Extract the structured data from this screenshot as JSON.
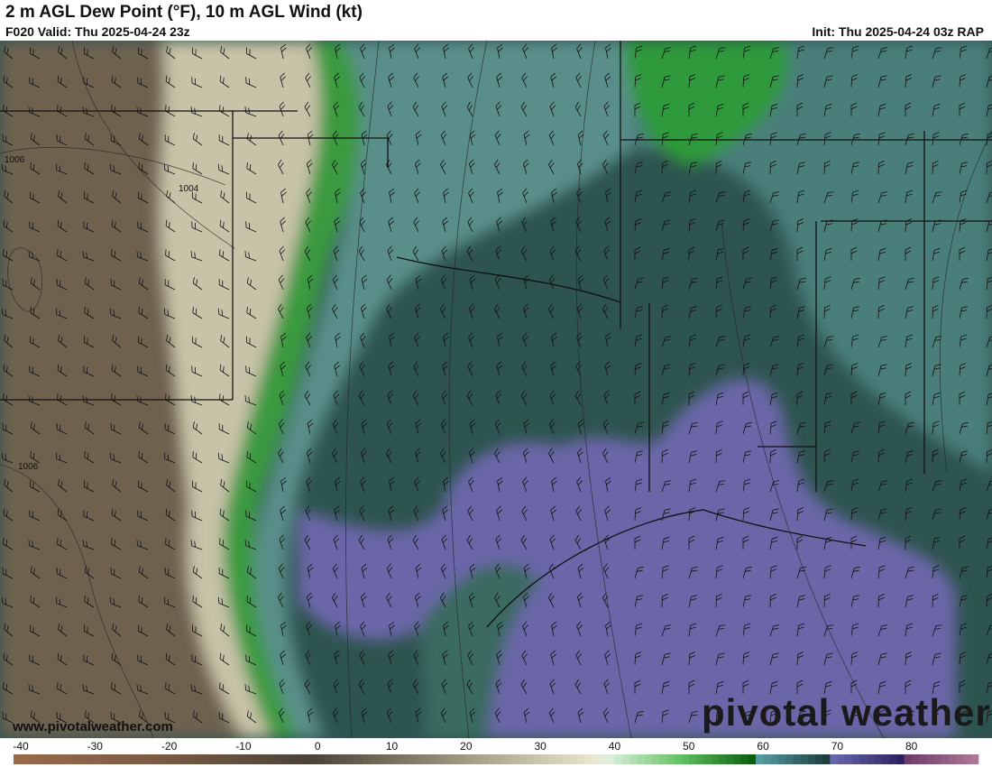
{
  "header": {
    "title": "2 m AGL Dew Point (°F), 10 m AGL Wind (kt)",
    "valid": "F020 Valid: Thu 2025-04-24 23z",
    "init": "Init: Thu 2025-04-24 03z RAP"
  },
  "map": {
    "isobar_labels": [
      "1006",
      "1004",
      "1006"
    ],
    "watermark_url": "www.pivotalweather.com",
    "logo": "pivotal weather"
  },
  "colorbar": {
    "unit": "°F",
    "range": [
      -40,
      90
    ],
    "ticks": [
      "-40",
      "-30",
      "-20",
      "-10",
      "0",
      "10",
      "20",
      "30",
      "40",
      "50",
      "60",
      "70",
      "80"
    ],
    "stops": [
      {
        "v": -40,
        "c": "#9a6a4a"
      },
      {
        "v": -20,
        "c": "#7a5a44"
      },
      {
        "v": 0,
        "c": "#4a4238"
      },
      {
        "v": 20,
        "c": "#9a9680"
      },
      {
        "v": 38,
        "c": "#e8e6d0"
      },
      {
        "v": 40,
        "c": "#e0f0e0"
      },
      {
        "v": 50,
        "c": "#60c060"
      },
      {
        "v": 59.9,
        "c": "#0a5a0a"
      },
      {
        "v": 60,
        "c": "#5aa0a8"
      },
      {
        "v": 69.9,
        "c": "#1a3a38"
      },
      {
        "v": 70,
        "c": "#6a6ab0"
      },
      {
        "v": 79.9,
        "c": "#2a2060"
      },
      {
        "v": 80,
        "c": "#6a3a6a"
      },
      {
        "v": 90,
        "c": "#b07a98"
      }
    ]
  }
}
